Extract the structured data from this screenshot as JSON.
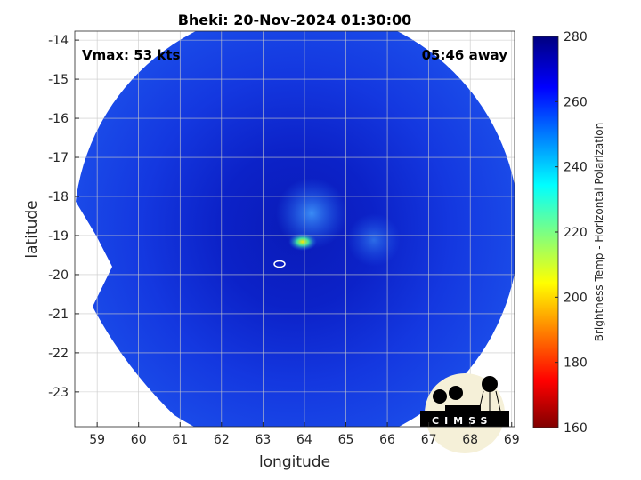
{
  "title": "Bheki: 20-Nov-2024 01:30:00",
  "vmax": "Vmax: 53 kts",
  "away": "05:46 away",
  "logo_text": "CIMSS",
  "chart_data": {
    "type": "heatmap",
    "title": "Bheki: 20-Nov-2024 01:30:00",
    "xlabel": "longitude",
    "ylabel": "latitude",
    "xlim": [
      58.46,
      69.07
    ],
    "ylim": [
      -23.89,
      -13.77
    ],
    "xticks": [
      "59",
      "60",
      "61",
      "62",
      "63",
      "64",
      "65",
      "66",
      "67",
      "68",
      "69"
    ],
    "yticks": [
      "-14",
      "-15",
      "-16",
      "-17",
      "-18",
      "-19",
      "-20",
      "-21",
      "-22",
      "-23"
    ],
    "colorbar": {
      "label": "Brightness Temp - Horizontal Polarization",
      "range": [
        160,
        280
      ],
      "ticks": [
        "160",
        "180",
        "200",
        "220",
        "240",
        "260",
        "280"
      ],
      "colormap": "jet"
    },
    "storm_center": {
      "lon": 63.4,
      "lat": -19.7
    },
    "cold_spot": {
      "lon": 64.0,
      "lat": -19.15,
      "value": 215
    },
    "background_value": 265
  }
}
